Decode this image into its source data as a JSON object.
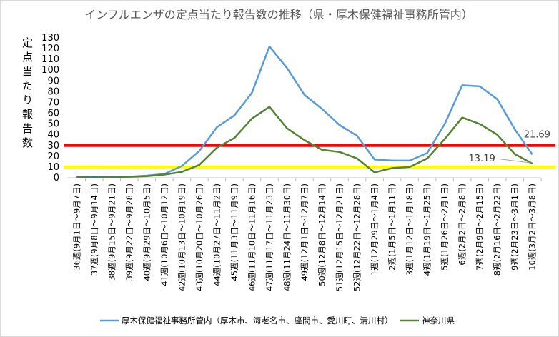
{
  "chart_data": {
    "type": "line",
    "title": "インフルエンザの定点当たり報告数の推移（県・厚木保健福祉事務所管内）",
    "y_label": "定点当たり報告数",
    "categories": [
      "36週(9月1日～9月7日)",
      "37週(9月8日～9月14日)",
      "38週(9月15日～9月21日)",
      "39週(9月22日～9月28日)",
      "40週(9月29日～10月5日)",
      "41週(10月6日～10月12日)",
      "42週(10月13日～10月19日)",
      "43週(10月20日～10月26日)",
      "44週(10月27日～11月2日)",
      "45週(11月3日～11月9日)",
      "46週(11月10日～11月16日)",
      "47週(11月17日～11月23日)",
      "48週(11月24日～11月30日)",
      "49週(12月1日～12月7日)",
      "50週(12月8日～12月14日)",
      "51週(12月15日～12月21日)",
      "52週(12月22日～12月28日)",
      "1週(12月29日～1月4日)",
      "2週(1月5日～1月11日)",
      "3週(1月12日～1月18日)",
      "4週(1月19日～1月25日)",
      "5週(1月26日～2月1日)",
      "6週(2月2日～2月8日)",
      "7週(2月9日～2月15日)",
      "8週(2月16日～2月22日)",
      "9週(2月23日～3月1日)",
      "10週(3月2日～3月8日)"
    ],
    "series": [
      {
        "name": "厚木保健福祉事務所管内（厚木市、海老名市、座間市、愛川町、清川村）",
        "color": "#5b9bd5",
        "label_last": true,
        "values": [
          0.5,
          1,
          0.5,
          1,
          2,
          3.5,
          11,
          25,
          47,
          58,
          79,
          122,
          102,
          77,
          64,
          49,
          39,
          17,
          16,
          16,
          23,
          50,
          86,
          85,
          73,
          45,
          21.69
        ]
      },
      {
        "name": "神奈川県",
        "color": "#548235",
        "label_last": true,
        "values": [
          0.5,
          0.5,
          0.5,
          1,
          1.5,
          3,
          5.5,
          12,
          28,
          37,
          55,
          66,
          46,
          35,
          26,
          24,
          18,
          5,
          9,
          10,
          18,
          36,
          56,
          50,
          40,
          22,
          13.19
        ]
      }
    ],
    "reference_lines": [
      {
        "value": 30,
        "color": "#ff0000"
      },
      {
        "value": 10,
        "color": "#ffff00"
      }
    ],
    "ylim": [
      0,
      130
    ],
    "yticks": [
      0,
      10,
      20,
      30,
      40,
      50,
      60,
      70,
      80,
      90,
      100,
      110,
      120,
      130
    ],
    "grid": false
  }
}
